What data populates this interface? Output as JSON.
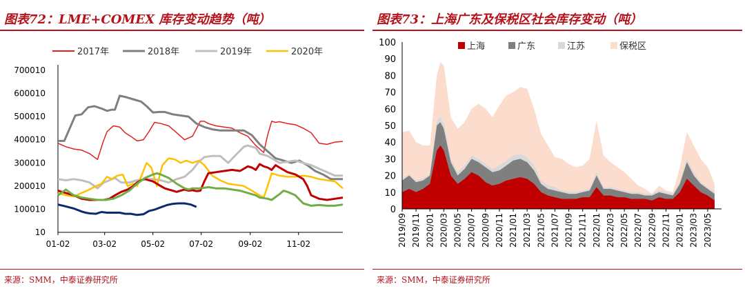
{
  "left": {
    "title": "图表72：LME+COMEX 库存变动趋势（吨）",
    "source": "来源：SMM，中泰证券研究所",
    "chart_data": {
      "type": "line",
      "y_ticks": [
        "700010",
        "600010",
        "500010",
        "400010",
        "300010",
        "200010",
        "100010",
        "10"
      ],
      "ylim": [
        10,
        700010
      ],
      "x_ticks": [
        "01-02",
        "03-02",
        "05-02",
        "07-02",
        "09-02",
        "11-02"
      ],
      "x_tick_days": [
        0,
        59,
        120,
        181,
        243,
        304
      ],
      "xlim": [
        0,
        360
      ],
      "series": [
        {
          "name": "2017年",
          "color": "#e02020",
          "width": 1.5,
          "x": [
            0,
            10,
            20,
            30,
            40,
            50,
            57,
            62,
            70,
            78,
            85,
            92,
            100,
            108,
            115,
            122,
            130,
            140,
            150,
            160,
            170,
            180,
            185,
            190,
            200,
            210,
            220,
            230,
            240,
            250,
            260,
            265,
            270,
            275,
            280,
            290,
            300,
            310,
            320,
            330,
            340,
            350,
            360
          ],
          "y": [
            385000,
            370000,
            360000,
            355000,
            340000,
            315000,
            390000,
            435000,
            460000,
            455000,
            430000,
            415000,
            395000,
            400000,
            435000,
            475000,
            470000,
            460000,
            430000,
            400000,
            415000,
            480000,
            480000,
            470000,
            460000,
            455000,
            450000,
            430000,
            415000,
            375000,
            345000,
            420000,
            480000,
            475000,
            478000,
            470000,
            465000,
            450000,
            430000,
            385000,
            380000,
            390000,
            393000
          ]
        },
        {
          "name": "2018年",
          "color": "#7f7f7f",
          "width": 3,
          "x": [
            0,
            8,
            15,
            22,
            30,
            38,
            46,
            55,
            62,
            68,
            72,
            78,
            85,
            95,
            105,
            112,
            120,
            128,
            135,
            145,
            155,
            165,
            175,
            185,
            195,
            205,
            215,
            225,
            235,
            245,
            255,
            265,
            275,
            285,
            295,
            305,
            315,
            325,
            335,
            345,
            360
          ],
          "y": [
            395000,
            395000,
            450000,
            505000,
            510000,
            540000,
            545000,
            535000,
            525000,
            530000,
            530000,
            590000,
            585000,
            575000,
            565000,
            545000,
            518000,
            520000,
            520000,
            510000,
            505000,
            500000,
            470000,
            455000,
            445000,
            440000,
            440000,
            440000,
            440000,
            420000,
            380000,
            350000,
            320000,
            310000,
            300000,
            310000,
            290000,
            265000,
            250000,
            230000,
            230000
          ]
        },
        {
          "name": "2019年",
          "color": "#bfbfbf",
          "width": 3,
          "x": [
            0,
            10,
            20,
            30,
            40,
            50,
            58,
            65,
            72,
            80,
            90,
            100,
            110,
            120,
            130,
            140,
            150,
            160,
            170,
            178,
            185,
            195,
            205,
            215,
            225,
            235,
            240,
            245,
            250,
            255,
            260,
            265,
            270,
            280,
            290,
            300,
            310,
            320,
            330,
            340,
            350,
            360
          ],
          "y": [
            230000,
            225000,
            230000,
            225000,
            215000,
            190000,
            215000,
            225000,
            235000,
            215000,
            215000,
            225000,
            230000,
            230000,
            225000,
            215000,
            230000,
            240000,
            270000,
            305000,
            325000,
            330000,
            330000,
            300000,
            335000,
            370000,
            375000,
            370000,
            365000,
            340000,
            335000,
            330000,
            320000,
            300000,
            305000,
            310000,
            300000,
            290000,
            275000,
            260000,
            245000,
            245000
          ]
        },
        {
          "name": "2020年",
          "color": "#ffc000",
          "width": 2.5,
          "x": [
            0,
            10,
            20,
            30,
            40,
            48,
            55,
            62,
            68,
            75,
            82,
            88,
            95,
            100,
            105,
            112,
            118,
            125,
            132,
            140,
            148,
            155,
            162,
            170,
            178,
            185,
            195,
            205,
            215,
            225,
            235,
            245,
            250,
            255,
            260,
            265,
            270,
            275,
            280,
            290,
            300,
            310,
            320,
            330,
            340,
            350,
            360
          ],
          "y": [
            170000,
            160000,
            155000,
            170000,
            185000,
            200000,
            210000,
            240000,
            230000,
            245000,
            250000,
            200000,
            210000,
            200000,
            240000,
            300000,
            280000,
            200000,
            290000,
            320000,
            315000,
            300000,
            310000,
            300000,
            310000,
            290000,
            245000,
            225000,
            210000,
            205000,
            200000,
            180000,
            170000,
            160000,
            150000,
            200000,
            255000,
            250000,
            245000,
            240000,
            240000,
            245000,
            240000,
            230000,
            225000,
            220000,
            190000
          ]
        },
        {
          "name": "",
          "color": "#0b2a6b",
          "width": 3,
          "x": [
            0,
            10,
            20,
            30,
            35,
            40,
            48,
            55,
            62,
            70,
            78,
            85,
            92,
            100,
            108,
            115,
            122,
            130,
            138,
            145,
            152,
            160,
            168,
            175
          ],
          "y": [
            120000,
            112000,
            103000,
            90000,
            85000,
            82000,
            80000,
            88000,
            85000,
            85000,
            85000,
            80000,
            80000,
            75000,
            78000,
            92000,
            98000,
            108000,
            118000,
            123000,
            125000,
            125000,
            120000,
            110000
          ]
        },
        {
          "name": "",
          "color": "#c00000",
          "width": 3,
          "x": [
            0,
            10,
            20,
            30,
            40,
            50,
            58,
            65,
            72,
            80,
            88,
            95,
            100,
            105,
            110,
            115,
            120,
            125,
            130,
            135,
            140,
            145,
            150,
            155,
            160,
            165,
            170,
            175,
            180,
            185,
            190,
            200,
            210,
            220,
            230,
            235,
            240,
            245,
            250,
            255,
            260,
            265,
            270,
            275,
            280,
            290,
            300,
            305,
            310,
            315,
            320,
            330,
            340,
            350,
            360
          ],
          "y": [
            180000,
            170000,
            160000,
            145000,
            140000,
            140000,
            140000,
            145000,
            160000,
            175000,
            185000,
            200000,
            215000,
            225000,
            230000,
            225000,
            220000,
            210000,
            200000,
            190000,
            185000,
            180000,
            175000,
            180000,
            185000,
            180000,
            182000,
            178000,
            180000,
            220000,
            255000,
            260000,
            265000,
            270000,
            265000,
            275000,
            285000,
            280000,
            270000,
            295000,
            285000,
            280000,
            270000,
            290000,
            280000,
            260000,
            250000,
            240000,
            230000,
            200000,
            160000,
            145000,
            140000,
            145000,
            150000
          ]
        },
        {
          "name": "",
          "color": "#70ad47",
          "width": 3,
          "x": [
            0,
            10,
            20,
            30,
            40,
            50,
            60,
            70,
            80,
            90,
            100,
            110,
            120,
            125,
            130,
            140,
            150,
            160,
            165,
            170,
            180,
            190,
            200,
            210,
            220,
            230,
            240,
            250,
            255,
            260,
            265,
            270,
            280,
            285,
            290,
            300,
            310,
            320,
            330,
            340,
            350,
            360
          ],
          "y": [
            160000,
            185000,
            160000,
            150000,
            145000,
            140000,
            140000,
            145000,
            160000,
            180000,
            210000,
            235000,
            250000,
            255000,
            250000,
            235000,
            210000,
            190000,
            185000,
            190000,
            190000,
            195000,
            190000,
            190000,
            185000,
            180000,
            170000,
            160000,
            150000,
            148000,
            145000,
            140000,
            165000,
            180000,
            175000,
            160000,
            125000,
            115000,
            118000,
            115000,
            115000,
            120000
          ]
        }
      ]
    }
  },
  "right": {
    "title": "图表73：上海广东及保税区社会库存变动（吨）",
    "source": "来源：SMM，中泰证券研究所",
    "chart_data": {
      "type": "area",
      "y_ticks": [
        "100",
        "90",
        "80",
        "70",
        "60",
        "50",
        "40",
        "30",
        "20",
        "10",
        "0"
      ],
      "ylim": [
        0,
        100
      ],
      "x_ticks": [
        "2019/09",
        "2019/11",
        "2020/01",
        "2020/03",
        "2020/05",
        "2020/07",
        "2020/09",
        "2020/11",
        "2021/01",
        "2021/03",
        "2021/05",
        "2021/07",
        "2021/09",
        "2021/11",
        "2022/01",
        "2022/03",
        "2022/05",
        "2022/07",
        "2022/09",
        "2022/11",
        "2023/01",
        "2023/03",
        "2023/05"
      ],
      "x_tick_index": [
        0,
        2,
        4,
        6,
        8,
        10,
        12,
        14,
        16,
        18,
        20,
        22,
        24,
        26,
        28,
        30,
        32,
        34,
        36,
        38,
        40,
        42,
        44
      ],
      "xlim": [
        0,
        46
      ],
      "legend": [
        "上海",
        "广东",
        "江苏",
        "保税区"
      ],
      "colors": [
        "#c00000",
        "#7f7f7f",
        "#d9d9d9",
        "#fbdccd"
      ],
      "x": [
        0,
        1,
        2,
        3,
        4,
        5,
        5.5,
        6,
        7,
        8,
        9,
        10,
        11,
        12,
        13,
        14,
        15,
        16,
        17,
        18,
        19,
        20,
        21,
        22,
        23,
        24,
        25,
        26,
        27,
        28,
        29,
        30,
        31,
        32,
        33,
        34,
        35,
        36,
        37,
        38,
        39,
        40,
        41,
        42,
        43,
        44,
        45
      ],
      "series": [
        {
          "name": "上海",
          "values": [
            10,
            12,
            10,
            12,
            15,
            35,
            38,
            35,
            20,
            15,
            18,
            22,
            20,
            16,
            14,
            15,
            17,
            18,
            19,
            18,
            15,
            10,
            8,
            7,
            6,
            6,
            6,
            7,
            7,
            13,
            8,
            8,
            7,
            7,
            6,
            6,
            6,
            5,
            7,
            6,
            6,
            10,
            18,
            14,
            10,
            8,
            5
          ]
        },
        {
          "name": "广东",
          "values": [
            17,
            20,
            16,
            17,
            20,
            50,
            52,
            48,
            28,
            20,
            24,
            30,
            28,
            25,
            22,
            23,
            26,
            29,
            30,
            28,
            23,
            15,
            12,
            11,
            10,
            9,
            9,
            10,
            11,
            20,
            12,
            12,
            11,
            10,
            9,
            9,
            8,
            8,
            10,
            9,
            8,
            15,
            28,
            20,
            15,
            12,
            9
          ]
        },
        {
          "name": "江苏",
          "values": [
            18,
            21,
            17,
            18,
            21,
            53,
            55,
            51,
            30,
            22,
            26,
            32,
            30,
            27,
            24,
            26,
            29,
            32,
            33,
            31,
            26,
            17,
            14,
            13,
            11,
            10,
            10,
            11,
            12,
            22,
            13,
            13,
            12,
            11,
            10,
            10,
            9,
            9,
            11,
            10,
            9,
            16,
            30,
            22,
            16,
            13,
            10
          ]
        },
        {
          "name": "保税区",
          "values": [
            46,
            47,
            40,
            38,
            38,
            80,
            88,
            86,
            55,
            48,
            52,
            60,
            63,
            60,
            55,
            62,
            68,
            70,
            73,
            72,
            60,
            45,
            38,
            31,
            30,
            27,
            25,
            26,
            30,
            53,
            32,
            28,
            25,
            22,
            18,
            14,
            12,
            9,
            14,
            11,
            10,
            25,
            46,
            38,
            30,
            25,
            15
          ]
        }
      ]
    }
  }
}
